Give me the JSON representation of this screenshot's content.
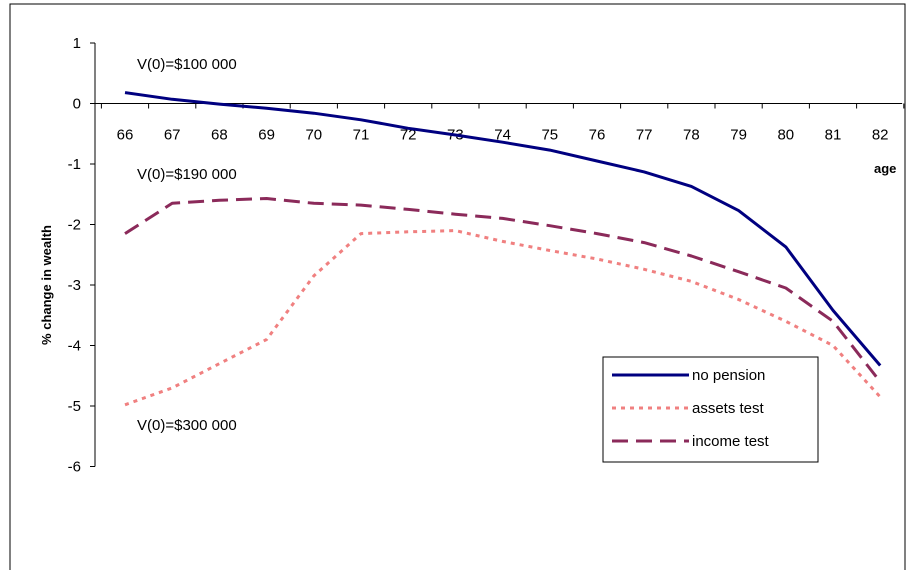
{
  "chart_data": {
    "type": "line",
    "title": "",
    "xlabel": "age",
    "ylabel": "% change in wealth",
    "x": [
      66,
      67,
      68,
      69,
      70,
      71,
      72,
      73,
      74,
      75,
      76,
      77,
      78,
      79,
      80,
      81,
      82
    ],
    "ylim": [
      -6,
      1
    ],
    "yticks": [
      1,
      0,
      -1,
      -2,
      -3,
      -4,
      -5,
      -6
    ],
    "grid": false,
    "legend_position": "bottom-right",
    "series": [
      {
        "name": "no pension",
        "color": "#000080",
        "style": "solid",
        "values": [
          0.18,
          0.07,
          -0.01,
          -0.08,
          -0.16,
          -0.27,
          -0.41,
          -0.52,
          -0.64,
          -0.77,
          -0.95,
          -1.13,
          -1.37,
          -1.77,
          -2.37,
          -3.42,
          -4.33
        ]
      },
      {
        "name": "assets test",
        "color": "#f08080",
        "style": "dotted",
        "values": [
          -4.98,
          -4.7,
          -4.3,
          -3.9,
          -2.85,
          -2.15,
          -2.12,
          -2.1,
          -2.28,
          -2.43,
          -2.57,
          -2.74,
          -2.94,
          -3.24,
          -3.6,
          -4.0,
          -4.85
        ]
      },
      {
        "name": "income test",
        "color": "#8b2a5a",
        "style": "dashed",
        "values": [
          -2.15,
          -1.65,
          -1.6,
          -1.57,
          -1.65,
          -1.68,
          -1.75,
          -1.83,
          -1.9,
          -2.02,
          -2.15,
          -2.3,
          -2.52,
          -2.78,
          -3.05,
          -3.6,
          -4.6
        ]
      }
    ],
    "annotations": [
      {
        "text": "V(0)=$100 000",
        "x": 66,
        "y": 0.57
      },
      {
        "text": "V(0)=$190 000",
        "x": 66,
        "y": -1.25
      },
      {
        "text": "V(0)=$300 000",
        "x": 66,
        "y": -5.4
      }
    ]
  }
}
